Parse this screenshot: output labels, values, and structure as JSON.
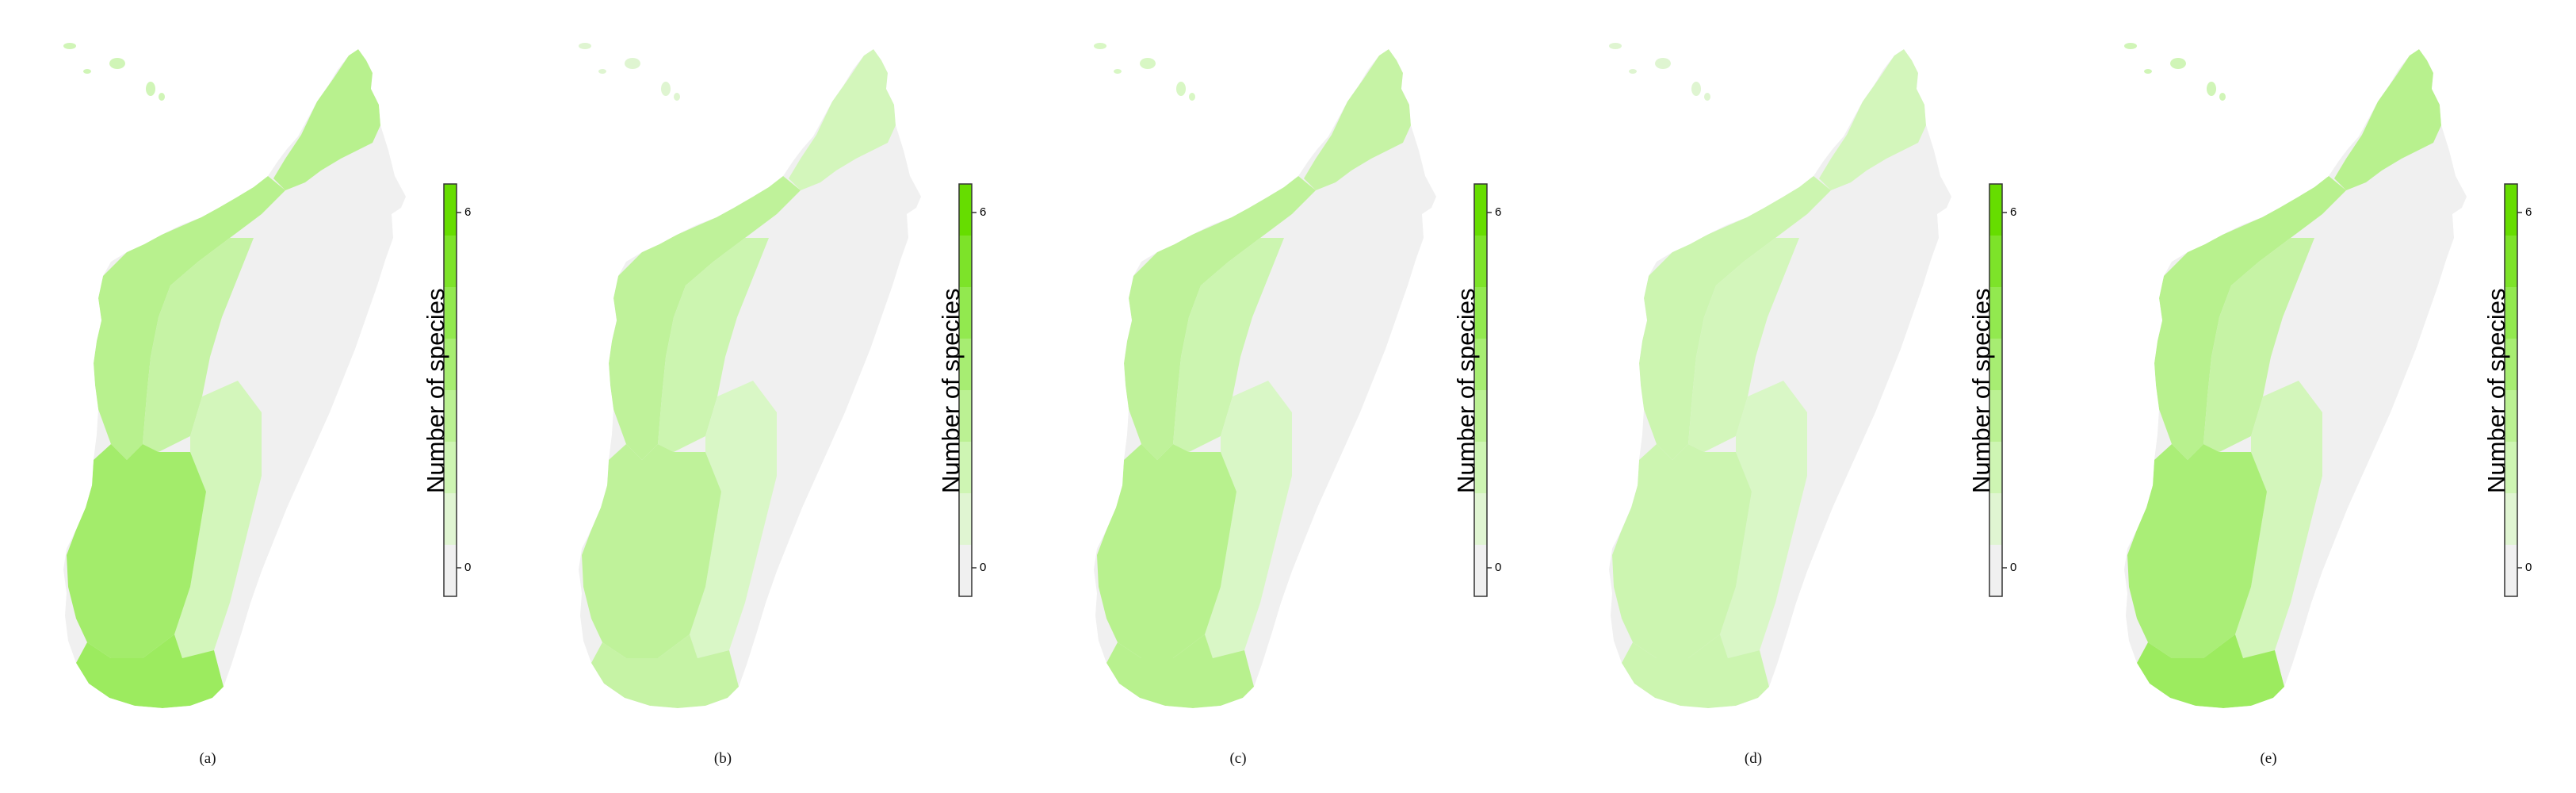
{
  "figure": {
    "panels": [
      {
        "caption": "(a)",
        "legend": {
          "title": "Number of species",
          "ticks": [
            "0",
            "6"
          ]
        },
        "zones": {
          "west_coast": 0.45,
          "north": 0.45,
          "southwest": 0.6,
          "south_tip": 0.65,
          "inland_west": 0.35,
          "center_south": 0.25,
          "east": 0.0
        }
      },
      {
        "caption": "(b)",
        "legend": {
          "title": "Number of species",
          "ticks": [
            "0",
            "6"
          ]
        },
        "zones": {
          "west_coast": 0.4,
          "north": 0.25,
          "southwest": 0.4,
          "south_tip": 0.35,
          "inland_west": 0.3,
          "center_south": 0.2,
          "east": 0.0
        }
      },
      {
        "caption": "(c)",
        "legend": {
          "title": "Number of species",
          "ticks": [
            "0",
            "6"
          ]
        },
        "zones": {
          "west_coast": 0.4,
          "north": 0.35,
          "southwest": 0.45,
          "south_tip": 0.45,
          "inland_west": 0.3,
          "center_south": 0.2,
          "east": 0.0
        }
      },
      {
        "caption": "(d)",
        "legend": {
          "title": "Number of species",
          "ticks": [
            "0",
            "6"
          ]
        },
        "zones": {
          "west_coast": 0.3,
          "north": 0.25,
          "southwest": 0.3,
          "south_tip": 0.3,
          "inland_west": 0.25,
          "center_south": 0.2,
          "east": 0.0
        }
      },
      {
        "caption": "(e)",
        "legend": {
          "title": "Number of species",
          "ticks": [
            "0",
            "6"
          ]
        },
        "zones": {
          "west_coast": 0.45,
          "north": 0.45,
          "southwest": 0.55,
          "south_tip": 0.65,
          "inland_west": 0.35,
          "center_south": 0.25,
          "east": 0.0
        }
      }
    ],
    "color_scale": {
      "min": 0,
      "max": 6,
      "colors": [
        "#f0f0f0",
        "#d9f7c6",
        "#bff29a",
        "#a3ec6b",
        "#86e63a",
        "#66dd00"
      ]
    }
  }
}
